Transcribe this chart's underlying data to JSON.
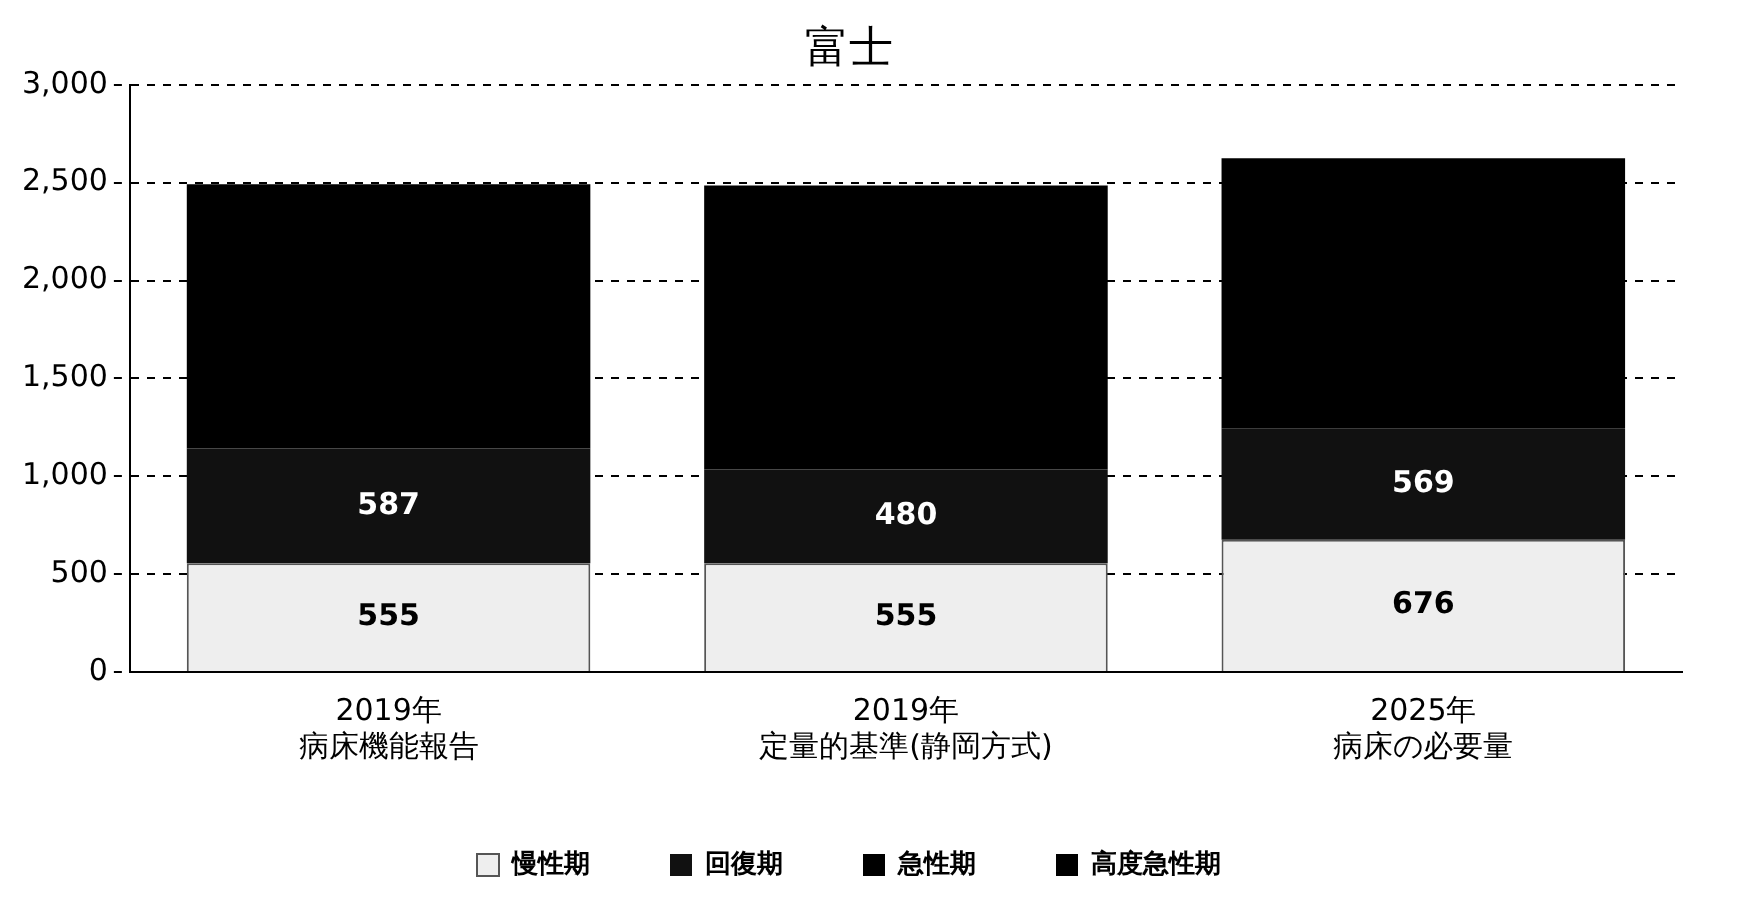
{
  "chart_data": {
    "type": "bar",
    "title": "富士",
    "stacked": true,
    "categories": [
      "2019年病床機能報告",
      "2019年定量的基準(静岡方式)",
      "2025年病床の必要量"
    ],
    "series": [
      {
        "name": "慢性期",
        "color": "#eeeeee",
        "values": [
          555,
          555,
          676
        ],
        "value_labels": [
          "555",
          "555",
          "676"
        ]
      },
      {
        "name": "回復期",
        "color": "#111111",
        "values": [
          587,
          480,
          569
        ],
        "value_labels": [
          "587",
          "480",
          "569"
        ]
      },
      {
        "name": "急性期",
        "color": "#000000",
        "values": [
          1350,
          1450,
          1380
        ]
      },
      {
        "name": "高度急性期",
        "color": "#000000",
        "values": [
          null,
          null,
          null
        ]
      }
    ],
    "ylim": [
      0,
      3000
    ],
    "yticks": [
      {
        "value": 0,
        "label": "0"
      },
      {
        "value": 500,
        "label": "500"
      },
      {
        "value": 1000,
        "label": "1,000"
      },
      {
        "value": 1500,
        "label": "1,500"
      },
      {
        "value": 2000,
        "label": "2,000"
      },
      {
        "value": 2500,
        "label": "2,500"
      },
      {
        "value": 3000,
        "label": "3,000"
      }
    ],
    "grid": "y",
    "legend": "bottom"
  }
}
